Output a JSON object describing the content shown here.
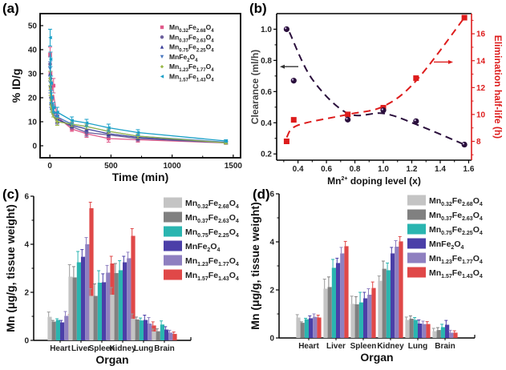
{
  "chart_data": [
    {
      "panel": "(a)",
      "type": "scatter",
      "xlabel": "Time (min)",
      "ylabel": "% ID/g",
      "xlim": [
        -80,
        1560
      ],
      "ylim": [
        -5,
        55
      ],
      "xticks": [
        0,
        500,
        1000,
        1500
      ],
      "yticks": [
        0,
        10,
        20,
        30,
        40,
        50
      ],
      "legend_position": "top-right",
      "x": [
        2,
        5,
        10,
        15,
        30,
        60,
        180,
        300,
        480,
        720,
        1440
      ],
      "series": [
        {
          "name": "Mn0.32Fe2.68O4",
          "base": "Mn",
          "parts": [
            [
              "Mn",
              ""
            ],
            [
              "0.32",
              "sub"
            ],
            [
              "Fe",
              ""
            ],
            [
              "2.68",
              "sub"
            ],
            [
              "O",
              ""
            ],
            [
              "4",
              "sub"
            ]
          ],
          "color": "#e05a8a",
          "marker": "square",
          "values": [
            38,
            30,
            24,
            20,
            25,
            12,
            7,
            5,
            3,
            2.5,
            1.2
          ],
          "errors": [
            3,
            3,
            3,
            3,
            3,
            2,
            1,
            1.5,
            1.5,
            1,
            0.5
          ]
        },
        {
          "name": "Mn0.37Fe2.63O4",
          "base": "Mn",
          "parts": [
            [
              "Mn",
              ""
            ],
            [
              "0.37",
              "sub"
            ],
            [
              "Fe",
              ""
            ],
            [
              "2.63",
              "sub"
            ],
            [
              "O",
              ""
            ],
            [
              "4",
              "sub"
            ]
          ],
          "color": "#6b5e9c",
          "marker": "circle",
          "values": [
            34,
            28,
            20,
            17,
            14,
            11,
            8,
            5.5,
            4.5,
            3,
            1.2
          ],
          "errors": [
            3,
            3,
            3,
            2,
            2,
            2,
            1,
            1.5,
            1,
            1,
            0.5
          ]
        },
        {
          "name": "Mn0.75Fe2.25O4",
          "base": "Mn",
          "parts": [
            [
              "Mn",
              ""
            ],
            [
              "0.75",
              "sub"
            ],
            [
              "Fe",
              ""
            ],
            [
              "2.25",
              "sub"
            ],
            [
              "O",
              ""
            ],
            [
              "4",
              "sub"
            ]
          ],
          "color": "#3a3f9a",
          "marker": "triangle-up",
          "values": [
            30,
            25,
            18,
            16,
            14,
            11,
            8.5,
            7,
            5,
            3.5,
            1.3
          ],
          "errors": [
            3,
            3,
            2,
            2,
            2,
            1.5,
            1,
            1,
            1,
            1,
            0.5
          ]
        },
        {
          "name": "MnFe2O4",
          "base": "Mn",
          "parts": [
            [
              "MnFe",
              ""
            ],
            [
              "2",
              "sub"
            ],
            [
              "O",
              ""
            ],
            [
              "4",
              "sub"
            ]
          ],
          "color": "#4a78c0",
          "marker": "triangle-down",
          "values": [
            32,
            26,
            20,
            17,
            15,
            12,
            9,
            8,
            6,
            4,
            1.5
          ],
          "errors": [
            3,
            3,
            2,
            2,
            2,
            1.5,
            1,
            1,
            1,
            1,
            0.5
          ]
        },
        {
          "name": "Mn1.23Fe1.77O4",
          "base": "Mn",
          "parts": [
            [
              "Mn",
              ""
            ],
            [
              "1.23",
              "sub"
            ],
            [
              "Fe",
              ""
            ],
            [
              "1.77",
              "sub"
            ],
            [
              "O",
              ""
            ],
            [
              "4",
              "sub"
            ]
          ],
          "color": "#9bb84a",
          "marker": "diamond",
          "values": [
            28,
            24,
            19,
            16,
            14,
            10,
            9,
            8,
            6,
            4,
            1.2
          ],
          "errors": [
            3,
            3,
            2,
            2,
            2,
            1.5,
            1,
            1,
            1,
            1,
            0.5
          ]
        },
        {
          "name": "Mn1.57Fe1.43O4",
          "base": "Mn",
          "parts": [
            [
              "Mn",
              ""
            ],
            [
              "1.57",
              "sub"
            ],
            [
              "Fe",
              ""
            ],
            [
              "1.43",
              "sub"
            ],
            [
              "O",
              ""
            ],
            [
              "4",
              "sub"
            ]
          ],
          "color": "#1aa0c8",
          "marker": "triangle-left",
          "values": [
            45,
            36,
            26,
            20,
            16,
            14,
            10.5,
            9.5,
            7.5,
            5.5,
            2
          ],
          "errors": [
            3.5,
            3,
            3,
            2,
            2,
            2,
            1.5,
            1.5,
            1.5,
            1.2,
            0.5
          ]
        }
      ]
    },
    {
      "panel": "(b)",
      "type": "line",
      "xlabel": "Mn2+ doping level (x)",
      "xlabel_parts": [
        [
          "Mn",
          ""
        ],
        [
          "2+",
          "sup"
        ],
        [
          " doping level (x)",
          ""
        ]
      ],
      "ylabel_left": "Clearance (ml/h)",
      "ylabel_right": "Elimination half-life (h)",
      "xlim": [
        0.25,
        1.62
      ],
      "ylim_left": [
        0.16,
        1.1
      ],
      "ylim_right": [
        6.6,
        17.5
      ],
      "xticks": [
        0.4,
        0.6,
        0.8,
        1.0,
        1.2,
        1.4,
        1.6
      ],
      "xtick_labels": [
        "0.4",
        "0.6",
        "0.8",
        "1.0",
        "1.2",
        "1.4",
        "1.6"
      ],
      "yticks_left": [
        0.2,
        0.4,
        0.6,
        0.8,
        1.0
      ],
      "ytick_labels_left": [
        "0.2",
        "0.4",
        "0.6",
        "0.8",
        "1.0"
      ],
      "yticks_right": [
        8,
        10,
        12,
        14,
        16
      ],
      "x": [
        0.32,
        0.37,
        0.75,
        1.0,
        1.23,
        1.57
      ],
      "series": [
        {
          "name": "Clearance",
          "axis": "left",
          "color": "#2a0f3c",
          "marker": "circle",
          "values": [
            1.0,
            0.67,
            0.42,
            0.48,
            0.41,
            0.26
          ]
        },
        {
          "name": "Elimination half-life",
          "axis": "right",
          "color": "#dd1c1c",
          "marker": "square",
          "values": [
            8.0,
            9.6,
            10.0,
            10.5,
            12.7,
            17.2
          ]
        }
      ],
      "annotations": [
        {
          "text": "arrow-left",
          "points_to": "left-axis"
        },
        {
          "text": "arrow-right",
          "points_to": "right-axis"
        }
      ]
    },
    {
      "panel": "(c)",
      "type": "bar",
      "xlabel": "Organ",
      "ylabel": "Mn (μg/g, tissue weight)",
      "ylim": [
        0,
        6
      ],
      "yticks": [
        0,
        2,
        4,
        6
      ],
      "categories": [
        "Heart",
        "Liver",
        "Spleen",
        "Kidney",
        "Lung",
        "Brain"
      ],
      "legend_position": "top-right",
      "series": [
        {
          "name": "Mn0.32Fe2.68O4",
          "color": "#c4c4c4",
          "values": [
            0.98,
            2.65,
            1.85,
            1.9,
            0.9,
            0.37
          ],
          "errors": [
            0.2,
            0.5,
            0.3,
            0.3,
            0.2,
            0.1
          ]
        },
        {
          "name": "Mn0.37Fe2.63O4",
          "color": "#808080",
          "values": [
            0.78,
            2.62,
            1.85,
            2.8,
            0.87,
            0.38
          ],
          "errors": [
            0.05,
            0.45,
            0.5,
            0.4,
            0.1,
            0.1
          ]
        },
        {
          "name": "Mn0.75Fe2.25O4",
          "color": "#2ab5b0",
          "values": [
            0.85,
            3.25,
            2.4,
            2.92,
            0.83,
            0.66
          ],
          "errors": [
            0.05,
            0.45,
            0.5,
            0.4,
            0.1,
            0.15
          ]
        },
        {
          "name": "MnFe2O4",
          "color": "#4b3fa8",
          "values": [
            0.75,
            3.48,
            2.42,
            3.25,
            0.85,
            0.45
          ],
          "errors": [
            0.08,
            0.3,
            0.35,
            0.25,
            0.2,
            0.12
          ]
        },
        {
          "name": "Mn1.23Fe1.77O4",
          "color": "#8f80c0",
          "values": [
            1.02,
            4.0,
            2.82,
            3.42,
            0.7,
            0.32
          ],
          "errors": [
            0.18,
            0.28,
            0.3,
            0.25,
            0.25,
            0.1
          ]
        },
        {
          "name": "Mn1.57Fe1.43O4",
          "color": "#e04848",
          "values": [
            0.95,
            5.5,
            3.2,
            4.35,
            0.62,
            0.27
          ],
          "errors": [
            0.12,
            0.25,
            0.3,
            0.3,
            0.15,
            0.08
          ]
        }
      ]
    },
    {
      "panel": "(d)",
      "type": "bar",
      "xlabel": "Organ",
      "ylabel": "Mn (μg/g, tissue weight)",
      "ylim": [
        0,
        6
      ],
      "yticks": [
        0,
        2,
        4,
        6
      ],
      "categories": [
        "Heart",
        "Liver",
        "Spleen",
        "Kidney",
        "Lung",
        "Brain"
      ],
      "legend_position": "top-right",
      "series": [
        {
          "name": "Mn0.32Fe2.68O4",
          "color": "#c4c4c4",
          "values": [
            0.85,
            2.05,
            1.42,
            2.38,
            0.75,
            0.28
          ],
          "errors": [
            0.12,
            0.4,
            0.32,
            0.2,
            0.12,
            0.12
          ]
        },
        {
          "name": "Mn0.37Fe2.63O4",
          "color": "#808080",
          "values": [
            0.63,
            2.12,
            1.4,
            2.88,
            0.8,
            0.33
          ],
          "errors": [
            0.04,
            0.42,
            0.32,
            0.32,
            0.12,
            0.1
          ]
        },
        {
          "name": "Mn0.75Fe2.25O4",
          "color": "#2ab5b0",
          "values": [
            0.78,
            2.92,
            1.48,
            2.82,
            0.75,
            0.45
          ],
          "errors": [
            0.04,
            0.35,
            0.42,
            0.3,
            0.1,
            0.12
          ]
        },
        {
          "name": "MnFe2O4",
          "color": "#4b3fa8",
          "values": [
            0.82,
            3.12,
            1.65,
            3.52,
            0.6,
            0.55
          ],
          "errors": [
            0.1,
            0.2,
            0.25,
            0.25,
            0.15,
            0.18
          ]
        },
        {
          "name": "Mn1.23Fe1.77O4",
          "color": "#8f80c0",
          "values": [
            0.88,
            3.52,
            1.8,
            3.8,
            0.58,
            0.22
          ],
          "errors": [
            0.12,
            0.25,
            0.25,
            0.25,
            0.12,
            0.1
          ]
        },
        {
          "name": "Mn1.57Fe1.43O4",
          "color": "#e04848",
          "values": [
            0.85,
            3.82,
            2.08,
            4.02,
            0.58,
            0.22
          ],
          "errors": [
            0.1,
            0.2,
            0.25,
            0.2,
            0.1,
            0.08
          ]
        }
      ]
    }
  ],
  "panel_labels": [
    "(a)",
    "(b)",
    "(c)",
    "(d)"
  ]
}
